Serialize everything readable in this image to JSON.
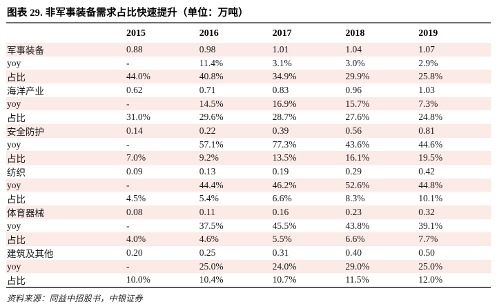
{
  "title": "图表 29. 非军事装备需求占比快速提升（单位：万吨）",
  "source": "资料来源：同益中招股书，中银证券",
  "colors": {
    "stripe_pink": "#fbeae6",
    "top_rule": "#6d6e71",
    "bottom_rule": "#58585a",
    "text": "#1a1a1a"
  },
  "chart_data": {
    "type": "table",
    "title": "图表 29. 非军事装备需求占比快速提升（单位：万吨）",
    "unit": "万吨",
    "columns": [
      "",
      "2015",
      "2016",
      "2017",
      "2018",
      "2019"
    ],
    "rows": [
      {
        "label": "军事装备",
        "values": [
          "0.88",
          "0.98",
          "1.01",
          "1.04",
          "1.07"
        ]
      },
      {
        "label": "yoy",
        "values": [
          "-",
          "11.4%",
          "3.1%",
          "3.0%",
          "2.9%"
        ]
      },
      {
        "label": "占比",
        "values": [
          "44.0%",
          "40.8%",
          "34.9%",
          "29.9%",
          "25.8%"
        ]
      },
      {
        "label": "海洋产业",
        "values": [
          "0.62",
          "0.71",
          "0.83",
          "0.96",
          "1.03"
        ]
      },
      {
        "label": "yoy",
        "values": [
          "-",
          "14.5%",
          "16.9%",
          "15.7%",
          "7.3%"
        ]
      },
      {
        "label": "占比",
        "values": [
          "31.0%",
          "29.6%",
          "28.7%",
          "27.6%",
          "24.8%"
        ]
      },
      {
        "label": "安全防护",
        "values": [
          "0.14",
          "0.22",
          "0.39",
          "0.56",
          "0.81"
        ]
      },
      {
        "label": "yoy",
        "values": [
          "-",
          "57.1%",
          "77.3%",
          "43.6%",
          "44.6%"
        ]
      },
      {
        "label": "占比",
        "values": [
          "7.0%",
          "9.2%",
          "13.5%",
          "16.1%",
          "19.5%"
        ]
      },
      {
        "label": "纺织",
        "values": [
          "0.09",
          "0.13",
          "0.19",
          "0.29",
          "0.42"
        ]
      },
      {
        "label": "yoy",
        "values": [
          "-",
          "44.4%",
          "46.2%",
          "52.6%",
          "44.8%"
        ]
      },
      {
        "label": "占比",
        "values": [
          "4.5%",
          "5.4%",
          "6.6%",
          "8.3%",
          "10.1%"
        ]
      },
      {
        "label": "体育器械",
        "values": [
          "0.08",
          "0.11",
          "0.16",
          "0.23",
          "0.32"
        ]
      },
      {
        "label": "yoy",
        "values": [
          "-",
          "37.5%",
          "45.5%",
          "43.8%",
          "39.1%"
        ]
      },
      {
        "label": "占比",
        "values": [
          "4.0%",
          "4.6%",
          "5.5%",
          "6.6%",
          "7.7%"
        ]
      },
      {
        "label": "建筑及其他",
        "values": [
          "0.20",
          "0.25",
          "0.31",
          "0.40",
          "0.50"
        ]
      },
      {
        "label": "yoy",
        "values": [
          "-",
          "25.0%",
          "24.0%",
          "29.0%",
          "25.0%"
        ]
      },
      {
        "label": "占比",
        "values": [
          "10.0%",
          "10.4%",
          "10.7%",
          "11.5%",
          "12.0%"
        ]
      }
    ]
  }
}
